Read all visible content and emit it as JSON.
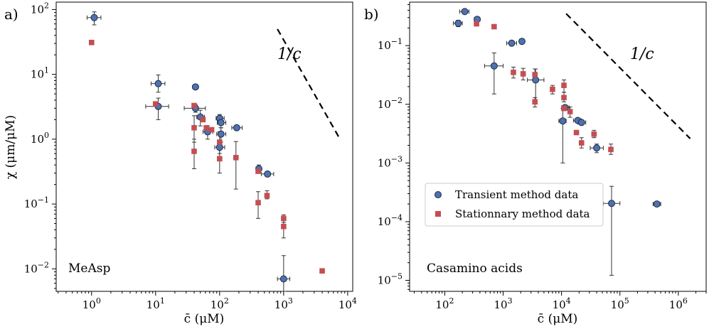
{
  "colors": {
    "transient": "#4c72b0",
    "transient_edge": "#1f2a44",
    "stationary": "#c44e52",
    "errorbar": "#333333",
    "guide": "#000000"
  },
  "legend": {
    "placement": "center-right of panel b",
    "transient_label": "Transient method data",
    "stationary_label": "Stationnary method data"
  },
  "chart_data": [
    {
      "type": "scatter",
      "panel": "a)",
      "annotation": "MeAsp",
      "guide_label": "1/c",
      "xlabel": "c̄ (μM)",
      "ylabel": "χ (μm/μM)",
      "xscale": "log",
      "yscale": "log",
      "xlim": [
        0.28,
        12000
      ],
      "ylim": [
        0.0045,
        130
      ],
      "xticks": [
        {
          "v": 1,
          "m": "10",
          "e": "0"
        },
        {
          "v": 10,
          "m": "10",
          "e": "1"
        },
        {
          "v": 100,
          "m": "10",
          "e": "2"
        },
        {
          "v": 1000,
          "m": "10",
          "e": "3"
        },
        {
          "v": 10000,
          "m": "10",
          "e": "4"
        }
      ],
      "yticks": [
        {
          "v": 0.01,
          "m": "10",
          "e": "−2"
        },
        {
          "v": 0.1,
          "m": "10",
          "e": "−1"
        },
        {
          "v": 1,
          "m": "10",
          "e": "0"
        },
        {
          "v": 10,
          "m": "10",
          "e": "1"
        },
        {
          "v": 100,
          "m": "10",
          "e": "2"
        }
      ],
      "guide_line": {
        "x": [
          800,
          7600
        ],
        "y": [
          50,
          1.0
        ]
      },
      "series": [
        {
          "name": "Transient method data",
          "marker": "circle",
          "points": [
            {
              "x": 1.1,
              "y": 75,
              "xerr": [
                0.85,
                1.4
              ],
              "yerr": [
                58,
                92
              ]
            },
            {
              "x": 11,
              "y": 7.2,
              "xerr": [
                8.5,
                14
              ],
              "yerr": [
                5.3,
                9.8
              ]
            },
            {
              "x": 11,
              "y": 3.2,
              "xerr": [
                7,
                16
              ],
              "yerr": [
                2.0,
                4.3
              ]
            },
            {
              "x": 42,
              "y": 6.4,
              "xerr": [
                38,
                46
              ],
              "yerr": [
                6.0,
                6.8
              ]
            },
            {
              "x": 42,
              "y": 3.0,
              "xerr": [
                28,
                60
              ],
              "yerr": [
                2.6,
                3.4
              ]
            },
            {
              "x": 50,
              "y": 2.2,
              "xerr": [
                44,
                58
              ],
              "yerr": [
                1.6,
                2.8
              ]
            },
            {
              "x": 65,
              "y": 1.3,
              "xerr": [
                55,
                78
              ],
              "yerr": [
                1.0,
                1.6
              ]
            },
            {
              "x": 100,
              "y": 2.1,
              "xerr": [
                88,
                118
              ],
              "yerr": [
                1.8,
                2.4
              ]
            },
            {
              "x": 105,
              "y": 1.8,
              "xerr": [
                92,
                125
              ],
              "yerr": [
                1.5,
                2.2
              ]
            },
            {
              "x": 105,
              "y": 1.2,
              "xerr": [
                90,
                125
              ],
              "yerr": [
                0.9,
                1.5
              ]
            },
            {
              "x": 100,
              "y": 0.75,
              "xerr": [
                84,
                120
              ],
              "yerr": [
                0.6,
                0.9
              ]
            },
            {
              "x": 185,
              "y": 1.5,
              "xerr": [
                155,
                225
              ],
              "yerr": [
                1.4,
                1.6
              ]
            },
            {
              "x": 410,
              "y": 0.35,
              "xerr": [
                370,
                450
              ],
              "yerr": [
                0.3,
                0.4
              ]
            },
            {
              "x": 560,
              "y": 0.29,
              "xerr": [
                450,
                700
              ],
              "yerr": [
                0.27,
                0.31
              ]
            },
            {
              "x": 1000,
              "y": 0.007,
              "xerr": [
                800,
                1250
              ],
              "yerr": [
                0.0045,
                0.016
              ]
            }
          ]
        },
        {
          "name": "Stationnary method data",
          "marker": "square",
          "points": [
            {
              "x": 1.0,
              "y": 31
            },
            {
              "x": 10,
              "y": 3.5
            },
            {
              "x": 40,
              "y": 3.3
            },
            {
              "x": 40,
              "y": 1.5,
              "yerr": [
                0.9,
                2.3
              ]
            },
            {
              "x": 40,
              "y": 0.65,
              "yerr": [
                0.35,
                1.0
              ]
            },
            {
              "x": 55,
              "y": 2.0
            },
            {
              "x": 62,
              "y": 1.5
            },
            {
              "x": 75,
              "y": 1.4
            },
            {
              "x": 100,
              "y": 0.9,
              "yerr": [
                0.7,
                1.3
              ]
            },
            {
              "x": 100,
              "y": 0.5,
              "yerr": [
                0.3,
                0.8
              ]
            },
            {
              "x": 180,
              "y": 0.52,
              "yerr": [
                0.17,
                0.92
              ]
            },
            {
              "x": 400,
              "y": 0.32
            },
            {
              "x": 400,
              "y": 0.105,
              "yerr": [
                0.06,
                0.155
              ]
            },
            {
              "x": 550,
              "y": 0.135,
              "yerr": [
                0.12,
                0.16
              ]
            },
            {
              "x": 1000,
              "y": 0.06,
              "yerr": [
                0.052,
                0.068
              ]
            },
            {
              "x": 1000,
              "y": 0.045,
              "yerr": [
                0.03,
                0.06
              ]
            },
            {
              "x": 4000,
              "y": 0.0093
            }
          ]
        }
      ]
    },
    {
      "type": "scatter",
      "panel": "b)",
      "annotation": "Casamino acids",
      "guide_label": "1/c",
      "xlabel": "c̄ (μM)",
      "ylabel": "",
      "xscale": "log",
      "yscale": "log",
      "xlim": [
        25,
        3000000
      ],
      "ylim": [
        6.5e-06,
        0.55
      ],
      "xticks": [
        {
          "v": 100,
          "m": "10",
          "e": "2"
        },
        {
          "v": 1000,
          "m": "10",
          "e": "3"
        },
        {
          "v": 10000,
          "m": "10",
          "e": "4"
        },
        {
          "v": 100000,
          "m": "10",
          "e": "5"
        },
        {
          "v": 1000000,
          "m": "10",
          "e": "6"
        }
      ],
      "yticks": [
        {
          "v": 1e-05,
          "m": "10",
          "e": "−5"
        },
        {
          "v": 0.0001,
          "m": "10",
          "e": "−4"
        },
        {
          "v": 0.001,
          "m": "10",
          "e": "−3"
        },
        {
          "v": 0.01,
          "m": "10",
          "e": "−2"
        },
        {
          "v": 0.1,
          "m": "10",
          "e": "−1"
        }
      ],
      "guide_line": {
        "x": [
          12000,
          1600000
        ],
        "y": [
          0.35,
          0.0026
        ]
      },
      "series": [
        {
          "name": "Transient method data",
          "marker": "circle",
          "points": [
            {
              "x": 220,
              "y": 0.38,
              "xerr": [
                180,
                260
              ],
              "yerr": [
                0.35,
                0.41
              ]
            },
            {
              "x": 170,
              "y": 0.24,
              "xerr": [
                140,
                200
              ],
              "yerr": [
                0.21,
                0.27
              ]
            },
            {
              "x": 360,
              "y": 0.28,
              "xerr": [
                320,
                400
              ],
              "yerr": [
                0.26,
                0.3
              ]
            },
            {
              "x": 1400,
              "y": 0.11,
              "xerr": [
                1150,
                1700
              ],
              "yerr": [
                0.1,
                0.12
              ]
            },
            {
              "x": 2100,
              "y": 0.118,
              "xerr": [
                1950,
                2250
              ],
              "yerr": [
                0.11,
                0.126
              ]
            },
            {
              "x": 700,
              "y": 0.045,
              "xerr": [
                480,
                1000
              ],
              "yerr": [
                0.015,
                0.075
              ]
            },
            {
              "x": 3600,
              "y": 0.026,
              "xerr": [
                2600,
                5000
              ],
              "yerr": [
                0.012,
                0.04
              ]
            },
            {
              "x": 10500,
              "y": 0.0052,
              "xerr": [
                9000,
                12000
              ],
              "yerr": [
                0.001,
                0.0085
              ]
            },
            {
              "x": 11500,
              "y": 0.0088,
              "xerr": [
                10000,
                13500
              ],
              "yerr": [
                0.008,
                0.0096
              ]
            },
            {
              "x": 19000,
              "y": 0.0053,
              "xerr": [
                16000,
                22000
              ],
              "yerr": [
                0.0049,
                0.0057
              ]
            },
            {
              "x": 22000,
              "y": 0.0049,
              "xerr": [
                19000,
                26000
              ],
              "yerr": [
                0.0045,
                0.0053
              ]
            },
            {
              "x": 40000,
              "y": 0.0018,
              "xerr": [
                31000,
                52000
              ],
              "yerr": [
                0.0015,
                0.0021
              ]
            },
            {
              "x": 72000,
              "y": 0.000205,
              "xerr": [
                52000,
                100000
              ],
              "yerr": [
                1.22e-05,
                0.0004
              ]
            },
            {
              "x": 430000,
              "y": 0.0002,
              "xerr": [
                370000,
                500000
              ],
              "yerr": [
                0.000185,
                0.000215
              ]
            }
          ]
        },
        {
          "name": "Stationnary method data",
          "marker": "square",
          "points": [
            {
              "x": 350,
              "y": 0.235
            },
            {
              "x": 700,
              "y": 0.21
            },
            {
              "x": 1500,
              "y": 0.035,
              "yerr": [
                0.028,
                0.043
              ]
            },
            {
              "x": 2200,
              "y": 0.033,
              "yerr": [
                0.026,
                0.041
              ]
            },
            {
              "x": 3500,
              "y": 0.032,
              "yerr": [
                0.025,
                0.04
              ]
            },
            {
              "x": 3500,
              "y": 0.011,
              "yerr": [
                0.009,
                0.013
              ]
            },
            {
              "x": 7000,
              "y": 0.018,
              "yerr": [
                0.015,
                0.021
              ]
            },
            {
              "x": 11000,
              "y": 0.021,
              "yerr": [
                0.016,
                0.026
              ]
            },
            {
              "x": 11000,
              "y": 0.013,
              "yerr": [
                0.011,
                0.016
              ]
            },
            {
              "x": 11000,
              "y": 0.0085
            },
            {
              "x": 14000,
              "y": 0.0075,
              "yerr": [
                0.006,
                0.009
              ]
            },
            {
              "x": 18000,
              "y": 0.0033
            },
            {
              "x": 22000,
              "y": 0.0022,
              "yerr": [
                0.0018,
                0.0027
              ]
            },
            {
              "x": 36000,
              "y": 0.0031,
              "yerr": [
                0.0027,
                0.0036
              ]
            },
            {
              "x": 70000,
              "y": 0.0017,
              "yerr": [
                0.0014,
                0.0021
              ]
            }
          ]
        }
      ]
    }
  ]
}
